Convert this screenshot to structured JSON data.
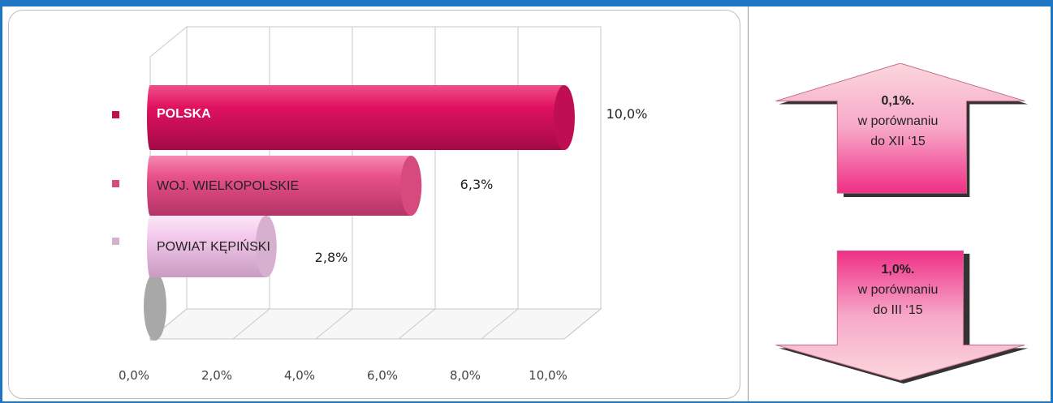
{
  "chart_data": {
    "type": "bar",
    "orientation": "horizontal",
    "categories": [
      "POLSKA",
      "WOJ. WIELKOPOLSKIE",
      "POWIAT KĘPIŃSKI"
    ],
    "values": [
      10.0,
      6.3,
      2.8
    ],
    "value_labels": [
      "10,0%",
      "6,3%",
      "2,8%"
    ],
    "xlim": [
      0,
      10
    ],
    "xticks": [
      "0,0%",
      "2,0%",
      "4,0%",
      "6,0%",
      "8,0%",
      "10,0%"
    ],
    "grid": true,
    "legend_position": "left",
    "colors": [
      "#e0115f",
      "#e8508a",
      "#f3c8ec"
    ]
  },
  "panels": {
    "up": {
      "value": "0,1%.",
      "line1": "w porównaniu",
      "line2": "do XII ‘15"
    },
    "down": {
      "value": "1,0%.",
      "line1": "w porównaniu",
      "line2": "do III ‘15"
    }
  }
}
